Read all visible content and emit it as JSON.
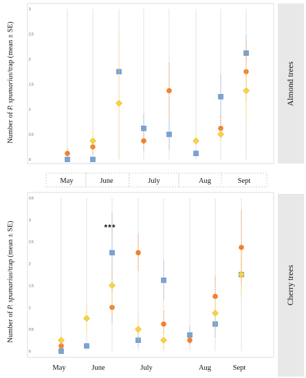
{
  "colors": {
    "series_a": "#7BA3D6",
    "series_b": "#F08030",
    "series_c": "#F7D347"
  },
  "chart_data": [
    {
      "type": "scatter",
      "title": "",
      "panel_label": "Almond trees",
      "ylabel_prefix": "Number of ",
      "ylabel_species": "P. spumarius",
      "ylabel_suffix": "/trap (mean ± SE)",
      "ylim": [
        0,
        3
      ],
      "yticks": [
        "0",
        "0.5",
        "1",
        "1.5",
        "2",
        "2.5",
        "3"
      ],
      "grid": "vertical",
      "months": [
        "May",
        "June",
        "July",
        "Aug",
        "Sept"
      ],
      "series": [
        {
          "marker": "square",
          "color": "#7BA3D6",
          "points": [
            [
              1,
              0,
              0.02
            ],
            [
              2,
              0,
              0.02
            ],
            [
              3,
              1.75,
              0.06
            ],
            [
              4,
              0.62,
              0.28
            ],
            [
              5,
              0.5,
              0.3
            ],
            [
              6,
              0.12,
              0.06
            ],
            [
              7,
              1.25,
              0.45
            ],
            [
              8,
              2.12,
              0.35
            ]
          ]
        },
        {
          "marker": "circle",
          "color": "#F08030",
          "points": [
            [
              1,
              0.12,
              0.1
            ],
            [
              2,
              0.25,
              0.15
            ],
            [
              4,
              0.37,
              0.2
            ],
            [
              5,
              1.37,
              0.55
            ],
            [
              7,
              0.62,
              0.25
            ],
            [
              8,
              1.75,
              0.6
            ]
          ]
        },
        {
          "marker": "diamond",
          "color": "#F7D347",
          "points": [
            [
              2,
              0.37,
              0.15
            ],
            [
              3,
              1.12,
              1.38
            ],
            [
              6,
              0.37,
              0.12
            ],
            [
              7,
              0.5,
              0.12
            ],
            [
              8,
              1.37,
              0.6
            ]
          ]
        }
      ],
      "annotation": ""
    },
    {
      "type": "scatter",
      "title": "",
      "panel_label": "Cherry trees",
      "ylabel_prefix": "Number of ",
      "ylabel_species": "P. spumarius",
      "ylabel_suffix": "/trap (mean ± SE)",
      "ylim": [
        0,
        3.5
      ],
      "yticks": [
        "0",
        "0.5",
        "1",
        "1.5",
        "2",
        "2.5",
        "3",
        "3.5"
      ],
      "grid": "vertical",
      "months": [
        "May",
        "June",
        "July",
        "Aug",
        "Sept"
      ],
      "series": [
        {
          "marker": "square",
          "color": "#7BA3D6",
          "points": [
            [
              1,
              0,
              0.02
            ],
            [
              2,
              0.12,
              0.06
            ],
            [
              3,
              2.25,
              0.9
            ],
            [
              4,
              0.25,
              0.15
            ],
            [
              5,
              1.62,
              0.45
            ],
            [
              6,
              0.37,
              0.2
            ],
            [
              7,
              0.62,
              0.3
            ],
            [
              8,
              1.75,
              0.45
            ]
          ]
        },
        {
          "marker": "circle",
          "color": "#F08030",
          "points": [
            [
              1,
              0.12,
              0.1
            ],
            [
              3,
              1.0,
              0.35
            ],
            [
              4,
              2.25,
              0.42
            ],
            [
              5,
              0.62,
              0.3
            ],
            [
              6,
              0.25,
              0.12
            ],
            [
              7,
              1.25,
              0.45
            ],
            [
              8,
              2.37,
              0.85
            ]
          ]
        },
        {
          "marker": "diamond",
          "color": "#F7D347",
          "points": [
            [
              1,
              0.25,
              0.15
            ],
            [
              2,
              0.75,
              0.3
            ],
            [
              3,
              1.5,
              0.55
            ],
            [
              4,
              0.5,
              0.25
            ],
            [
              5,
              0.25,
              0.2
            ],
            [
              7,
              0.87,
              0.35
            ],
            [
              8,
              1.75,
              0.5
            ]
          ]
        }
      ],
      "annotation": "***"
    }
  ]
}
